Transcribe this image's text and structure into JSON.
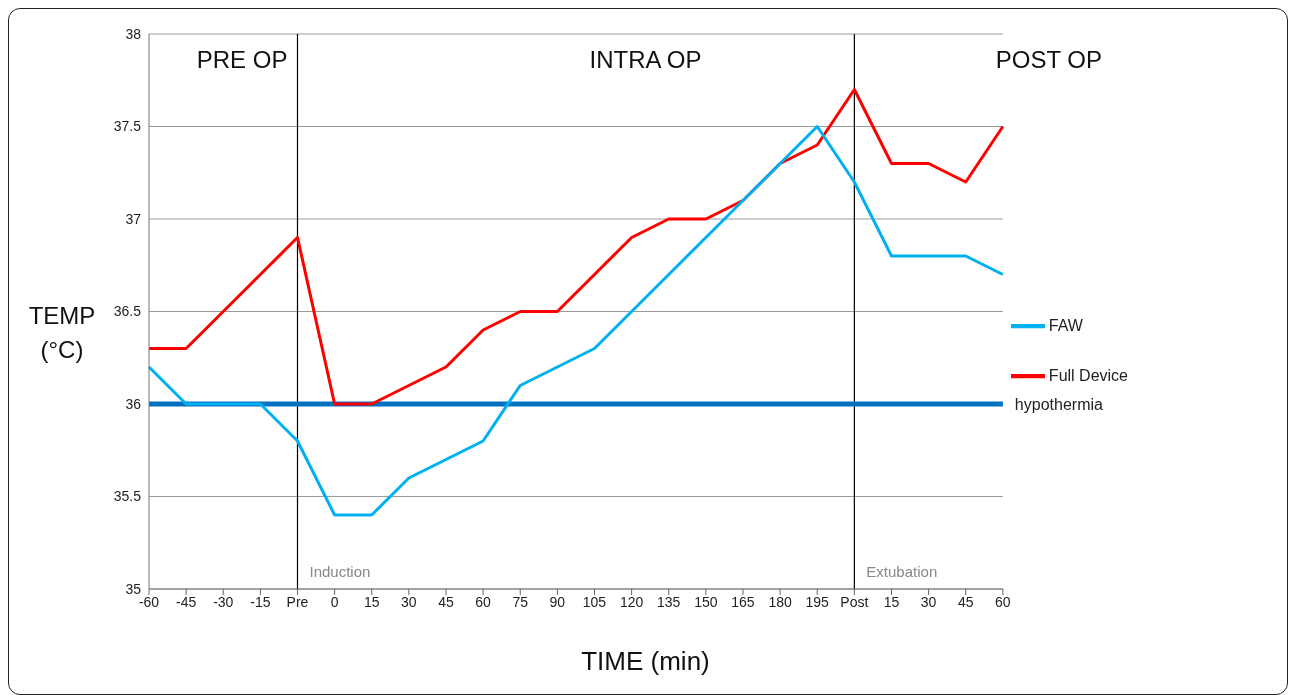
{
  "chart_data": {
    "type": "line",
    "xlabel": "TIME (min)",
    "ylabel": "TEMP (°C)",
    "categories": [
      "-60",
      "-45",
      "-30",
      "-15",
      "Pre",
      "0",
      "15",
      "30",
      "45",
      "60",
      "75",
      "90",
      "105",
      "120",
      "135",
      "150",
      "165",
      "180",
      "195",
      "Post",
      "15",
      "30",
      "45",
      "60"
    ],
    "series": [
      {
        "name": "Full Device",
        "color": "#ff0000",
        "values": [
          36.3,
          36.3,
          36.5,
          36.7,
          36.9,
          36.0,
          36.0,
          36.1,
          36.2,
          36.4,
          36.5,
          36.5,
          36.7,
          36.9,
          37.0,
          37.0,
          37.1,
          37.3,
          37.4,
          37.7,
          37.3,
          37.3,
          37.2,
          37.5
        ]
      },
      {
        "name": "FAW",
        "color": "#00b0f0",
        "values": [
          36.2,
          36.0,
          36.0,
          36.0,
          35.8,
          35.4,
          35.4,
          35.6,
          35.7,
          35.8,
          36.1,
          36.2,
          36.3,
          36.5,
          36.7,
          36.9,
          37.1,
          37.3,
          37.5,
          37.2,
          36.8,
          36.8,
          36.8,
          36.7
        ]
      }
    ],
    "ylim": [
      35,
      38
    ],
    "yticks": [
      35,
      35.5,
      36,
      36.5,
      37,
      37.5,
      38
    ],
    "grid": "y",
    "legend": "right",
    "marker": "none",
    "line_style": "solid",
    "ref_lines": [
      {
        "axis": "x",
        "value": "Pre",
        "label": "Induction",
        "color": "#000000"
      },
      {
        "axis": "x",
        "value": "Post",
        "label": "Extubation",
        "color": "#000000"
      },
      {
        "axis": "y",
        "value": 36,
        "label": "hypothermia",
        "color": "#0070c0"
      }
    ],
    "annotations": [
      "PRE OP",
      "INTRA OP",
      "POST OP"
    ]
  }
}
